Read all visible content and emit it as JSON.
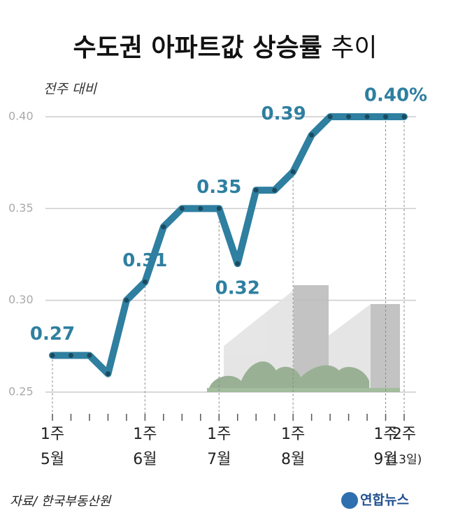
{
  "chart_data": {
    "type": "line",
    "title": "수도권 아파트값 상승률",
    "title_end": "추이",
    "y_label": "전주 대비",
    "source": "자료/ 한국부동산원",
    "logo": "연합뉴스",
    "categories": [
      "1주\n5월",
      null,
      null,
      null,
      null,
      "1주\n6월",
      null,
      null,
      null,
      "1주\n7월",
      null,
      null,
      null,
      "1주\n8월",
      null,
      null,
      null,
      null,
      "1주\n9월",
      "2주\n(13일)"
    ],
    "series": [
      {
        "name": "전주 대비",
        "color": "#2e7fa0",
        "values": [
          0.27,
          0.27,
          0.27,
          0.26,
          0.3,
          0.31,
          0.34,
          0.35,
          0.35,
          0.35,
          0.32,
          0.36,
          0.36,
          0.37,
          0.39,
          0.4,
          0.4,
          0.4,
          0.4,
          0.4
        ],
        "value_labels": [
          "0.27",
          null,
          null,
          null,
          null,
          "0.31",
          null,
          null,
          null,
          "0.35",
          "0.32",
          null,
          null,
          null,
          "0.39",
          null,
          null,
          null,
          null,
          "0.40%"
        ]
      }
    ],
    "ylim": [
      0.25,
      0.4
    ],
    "yticks": [
      0.25,
      {
        "value": 0.3,
        "label": "0.30"
      },
      0.35,
      {
        "value": 0.4,
        "label": "0.40"
      }
    ],
    "grid": true
  }
}
